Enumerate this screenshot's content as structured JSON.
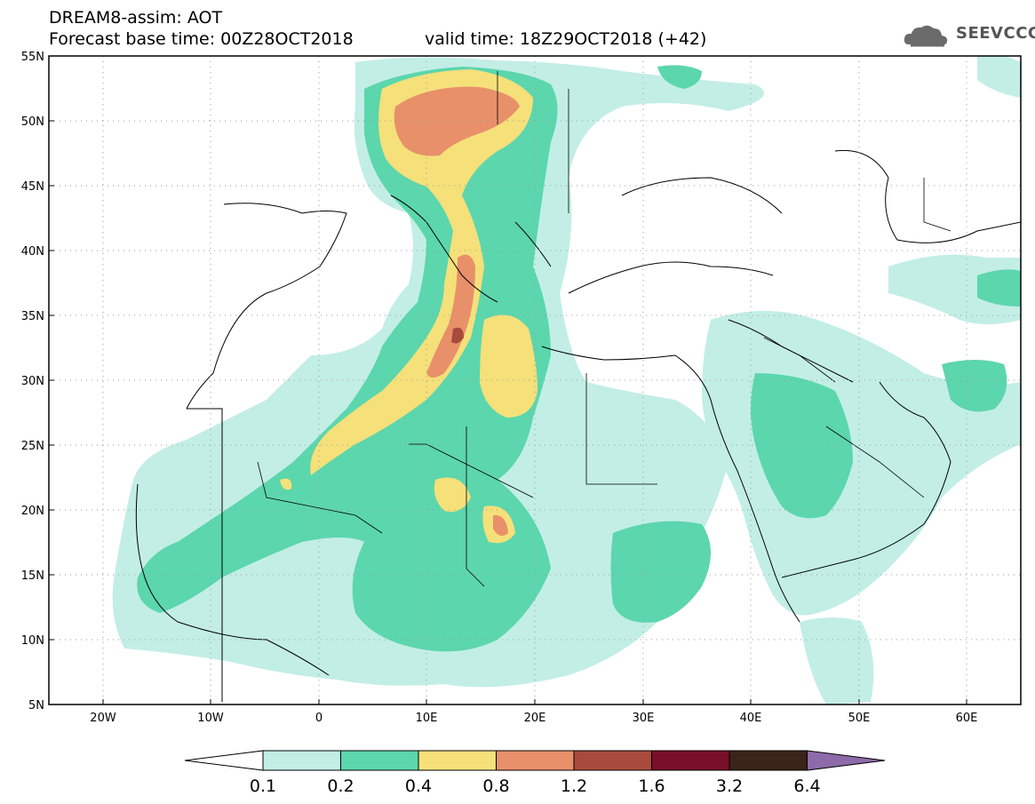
{
  "header": {
    "title": "DREAM8-assim: AOT",
    "base_time": "Forecast base time: 00Z28OCT2018",
    "valid_time": "valid time: 18Z29OCT2018 (+42)",
    "logo_text": "SEEVCCC"
  },
  "map": {
    "lon_range": [
      -25,
      65
    ],
    "lat_range": [
      5,
      55
    ],
    "lat_labels": [
      "5N",
      "10N",
      "15N",
      "20N",
      "25N",
      "30N",
      "35N",
      "40N",
      "45N",
      "50N",
      "55N"
    ],
    "lon_labels": [
      "20W",
      "10W",
      "0",
      "10E",
      "20E",
      "30E",
      "40E",
      "50E",
      "60E"
    ]
  },
  "legend": {
    "levels": [
      "0.1",
      "0.2",
      "0.4",
      "0.8",
      "1.2",
      "1.6",
      "3.2",
      "6.4"
    ],
    "colors": [
      "#ffffff",
      "#c2eee6",
      "#5cd6ad",
      "#f5e07a",
      "#e8906a",
      "#a84a3c",
      "#7a0f2a",
      "#3a2318",
      "#8e6aaa"
    ]
  },
  "colors": {
    "c1": "#c2eee6",
    "c2": "#5cd6ad",
    "c3": "#f5e07a",
    "c4": "#e8906a",
    "c5": "#a84a3c"
  }
}
